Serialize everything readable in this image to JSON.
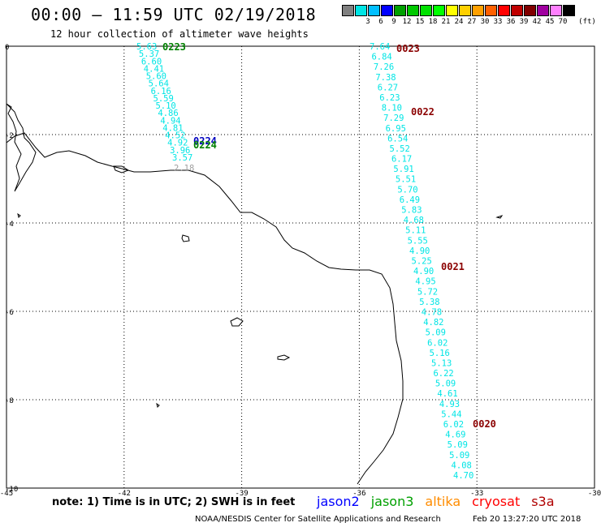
{
  "header": {
    "title": "00:00 — 11:59 UTC 02/19/2018",
    "subtitle": "12 hour collection of altimeter wave heights"
  },
  "scale_legend": {
    "unit_label": "(ft)",
    "items": [
      {
        "label": "",
        "color": "#808080"
      },
      {
        "label": "3",
        "color": "#00e5e5"
      },
      {
        "label": "6",
        "color": "#00bfff"
      },
      {
        "label": "9",
        "color": "#0000ff"
      },
      {
        "label": "12",
        "color": "#00a000"
      },
      {
        "label": "15",
        "color": "#00c800"
      },
      {
        "label": "18",
        "color": "#00e000"
      },
      {
        "label": "21",
        "color": "#00ff00"
      },
      {
        "label": "24",
        "color": "#ffff00"
      },
      {
        "label": "27",
        "color": "#ffd000"
      },
      {
        "label": "30",
        "color": "#ffa000"
      },
      {
        "label": "33",
        "color": "#ff6000"
      },
      {
        "label": "36",
        "color": "#ff0000"
      },
      {
        "label": "39",
        "color": "#c00000"
      },
      {
        "label": "42",
        "color": "#800000"
      },
      {
        "label": "45",
        "color": "#a000a0"
      },
      {
        "label": "70",
        "color": "#ff80ff"
      },
      {
        "label": "",
        "color": "#000000"
      }
    ]
  },
  "map": {
    "lon_ticks": [
      "-45",
      "-42",
      "-39",
      "-36",
      "-33",
      "-30"
    ],
    "lat_ticks": [
      "0",
      "-2",
      "-4",
      "-6",
      "-8",
      "-10"
    ]
  },
  "passes": [
    {
      "label": "0223",
      "color": "#008000"
    },
    {
      "label": "0224",
      "color": "#0000c0"
    },
    {
      "label": "0224",
      "color": "#008000"
    },
    {
      "label": "0023",
      "color": "#8b0000"
    },
    {
      "label": "0022",
      "color": "#8b0000"
    },
    {
      "label": "0021",
      "color": "#8b0000"
    },
    {
      "label": "0020",
      "color": "#8b0000"
    }
  ],
  "track_jason": {
    "color": "#00e5e5",
    "values": [
      "5.63",
      "5.37",
      "6.60",
      "4.41",
      "5.60",
      "5.64",
      "6.16",
      "5.59",
      "5.10",
      "4.86",
      "4.94",
      "4.81",
      "4.52",
      "4.92",
      "3.96",
      "3.57"
    ],
    "end_value": "2.18",
    "end_color": "#a0a0a0"
  },
  "track_cryosat": {
    "color": "#00e5e5",
    "values": [
      "7.64",
      "6.84",
      "7.26",
      "7.38",
      "6.27",
      "6.23",
      "8.10",
      "7.29",
      "6.95",
      "6.54",
      "5.52",
      "6.17",
      "5.91",
      "5.51",
      "5.70",
      "6.49",
      "5.83",
      "4.68",
      "5.11",
      "5.55",
      "4.90",
      "5.25",
      "4.90",
      "4.95",
      "5.72",
      "5.38",
      "4.78",
      "4.82",
      "5.09",
      "6.02",
      "5.16",
      "5.13",
      "6.22",
      "5.09",
      "4.61",
      "4.93",
      "5.44",
      "6.02",
      "4.69",
      "5.09",
      "5.09",
      "4.08",
      "4.70"
    ]
  },
  "footer": {
    "note": "note: 1) Time is in UTC; 2) SWH is in feet",
    "satellites": [
      {
        "name": "jason2",
        "color": "#0000ff"
      },
      {
        "name": "jason3",
        "color": "#00a000"
      },
      {
        "name": "altika",
        "color": "#ff8c00"
      },
      {
        "name": "cryosat",
        "color": "#ff0000"
      },
      {
        "name": "s3a",
        "color": "#b00000"
      }
    ],
    "credit": "NOAA/NESDIS Center for Satellite Applications and Research",
    "timestamp": "Feb 20 13:27:20 UTC 2018"
  }
}
